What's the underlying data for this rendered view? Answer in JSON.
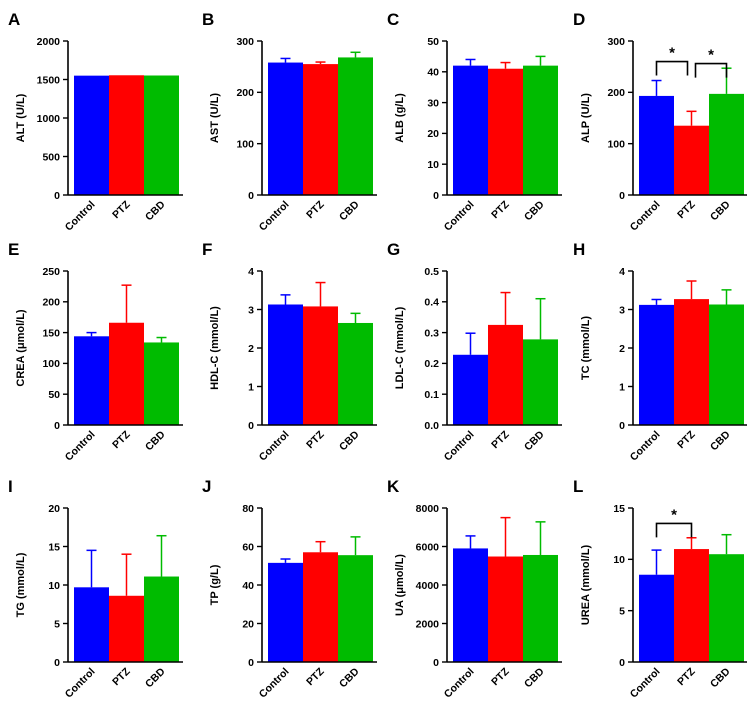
{
  "colors": {
    "Control": "#0000ff",
    "PTZ": "#ff0000",
    "CBD": "#00bb00"
  },
  "chart_data": [
    {
      "type": "bar",
      "letter": "A",
      "ylabel": "ALT (U/L)",
      "ylim": [
        0,
        2000
      ],
      "yticks": [
        0,
        500,
        1000,
        1500,
        2000
      ],
      "categories": [
        "Control",
        "PTZ",
        "CBD"
      ],
      "values": [
        1550,
        1555,
        1552
      ],
      "errors": [
        0,
        0,
        0
      ],
      "significance": []
    },
    {
      "type": "bar",
      "letter": "B",
      "ylabel": "AST (U/L)",
      "ylim": [
        0,
        300
      ],
      "yticks": [
        0,
        100,
        200,
        300
      ],
      "categories": [
        "Control",
        "PTZ",
        "CBD"
      ],
      "values": [
        258,
        255,
        268
      ],
      "errors": [
        8,
        4,
        10
      ],
      "significance": []
    },
    {
      "type": "bar",
      "letter": "C",
      "ylabel": "ALB (g/L)",
      "ylim": [
        0,
        50
      ],
      "yticks": [
        0,
        10,
        20,
        30,
        40,
        50
      ],
      "categories": [
        "Control",
        "PTZ",
        "CBD"
      ],
      "values": [
        42,
        41,
        42
      ],
      "errors": [
        2,
        2,
        3
      ],
      "significance": []
    },
    {
      "type": "bar",
      "letter": "D",
      "ylabel": "ALP (U/L)",
      "ylim": [
        0,
        300
      ],
      "yticks": [
        0,
        100,
        200,
        300
      ],
      "categories": [
        "Control",
        "PTZ",
        "CBD"
      ],
      "values": [
        193,
        135,
        197
      ],
      "errors": [
        30,
        28,
        50
      ],
      "significance": [
        {
          "from": 0,
          "to": 1,
          "label": "*",
          "y": 260
        },
        {
          "from": 1,
          "to": 2,
          "label": "*",
          "y": 256
        }
      ]
    },
    {
      "type": "bar",
      "letter": "E",
      "ylabel": "CREA (μmol/L)",
      "ylim": [
        0,
        250
      ],
      "yticks": [
        0,
        50,
        100,
        150,
        200,
        250
      ],
      "categories": [
        "Control",
        "PTZ",
        "CBD"
      ],
      "values": [
        144,
        166,
        134
      ],
      "errors": [
        6,
        61,
        8
      ],
      "significance": []
    },
    {
      "type": "bar",
      "letter": "F",
      "ylabel": "HDL-C (mmol/L)",
      "ylim": [
        0,
        4
      ],
      "yticks": [
        0,
        1,
        2,
        3,
        4
      ],
      "categories": [
        "Control",
        "PTZ",
        "CBD"
      ],
      "values": [
        3.13,
        3.08,
        2.65
      ],
      "errors": [
        0.25,
        0.62,
        0.25
      ],
      "significance": []
    },
    {
      "type": "bar",
      "letter": "G",
      "ylabel": "LDL-C (mmol/L)",
      "ylim": [
        0,
        0.5
      ],
      "yticks": [
        "0.0",
        "0.1",
        "0.2",
        "0.3",
        "0.4",
        "0.5"
      ],
      "categories": [
        "Control",
        "PTZ",
        "CBD"
      ],
      "values": [
        0.228,
        0.325,
        0.278
      ],
      "errors": [
        0.07,
        0.105,
        0.132
      ],
      "significance": []
    },
    {
      "type": "bar",
      "letter": "H",
      "ylabel": "TC (mmol/L)",
      "ylim": [
        0,
        4
      ],
      "yticks": [
        0,
        1,
        2,
        3,
        4
      ],
      "categories": [
        "Control",
        "PTZ",
        "CBD"
      ],
      "values": [
        3.12,
        3.27,
        3.13
      ],
      "errors": [
        0.14,
        0.47,
        0.38
      ],
      "significance": []
    },
    {
      "type": "bar",
      "letter": "I",
      "ylabel": "TG (mmol/L)",
      "ylim": [
        0,
        20
      ],
      "yticks": [
        0,
        5,
        10,
        15,
        20
      ],
      "categories": [
        "Control",
        "PTZ",
        "CBD"
      ],
      "values": [
        9.7,
        8.6,
        11.1
      ],
      "errors": [
        4.8,
        5.4,
        5.3
      ],
      "significance": []
    },
    {
      "type": "bar",
      "letter": "J",
      "ylabel": "TP (g/L)",
      "ylim": [
        0,
        80
      ],
      "yticks": [
        0,
        20,
        40,
        60,
        80
      ],
      "categories": [
        "Control",
        "PTZ",
        "CBD"
      ],
      "values": [
        51.5,
        57,
        55.5
      ],
      "errors": [
        2,
        5.5,
        9.5
      ],
      "significance": []
    },
    {
      "type": "bar",
      "letter": "K",
      "ylabel": "UA (μmol/L)",
      "ylim": [
        0,
        8000
      ],
      "yticks": [
        0,
        2000,
        4000,
        6000,
        8000
      ],
      "categories": [
        "Control",
        "PTZ",
        "CBD"
      ],
      "values": [
        5900,
        5480,
        5560
      ],
      "errors": [
        650,
        2020,
        1720
      ],
      "significance": []
    },
    {
      "type": "bar",
      "letter": "L",
      "ylabel": "UREA (mmol/L)",
      "ylim": [
        0,
        15
      ],
      "yticks": [
        0,
        5,
        10,
        15
      ],
      "categories": [
        "Control",
        "PTZ",
        "CBD"
      ],
      "values": [
        8.5,
        11.0,
        10.5
      ],
      "errors": [
        2.4,
        1.1,
        1.9
      ],
      "significance": [
        {
          "from": 0,
          "to": 1,
          "label": "*",
          "y": 13.5
        }
      ]
    }
  ]
}
